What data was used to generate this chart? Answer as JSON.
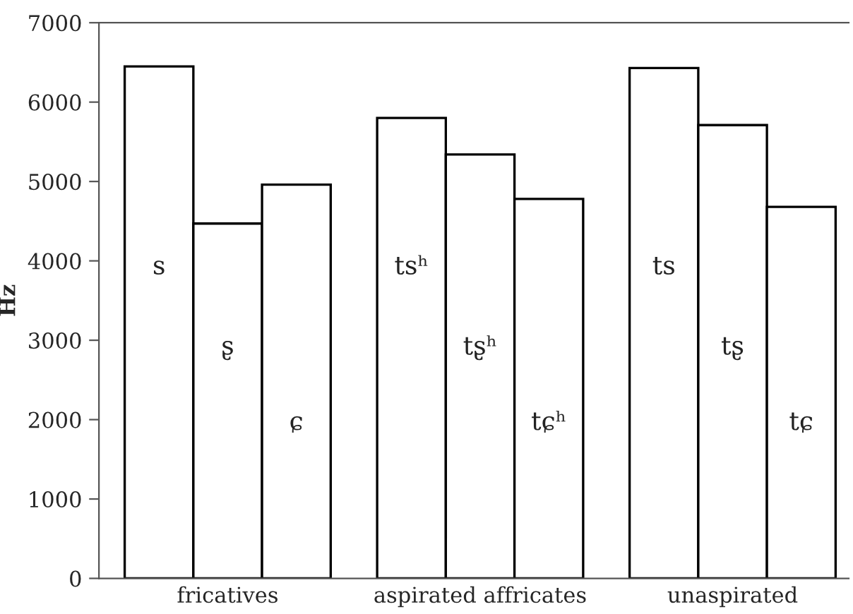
{
  "chart_data": {
    "type": "bar",
    "ylabel": "Hz",
    "categories": [
      "fricatives",
      "aspirated affricates",
      "unaspirated"
    ],
    "series": [
      {
        "color": "#ffffff",
        "values": [
          6450,
          5800,
          6430
        ],
        "value_labels": [
          "s",
          "tsʰ",
          "ts"
        ]
      },
      {
        "color": "#ffffff",
        "values": [
          4470,
          5340,
          5710
        ],
        "value_labels": [
          "ʂ",
          "tʂʰ",
          "tʂ"
        ]
      },
      {
        "color": "#ffffff",
        "values": [
          4960,
          4780,
          4680
        ],
        "value_labels": [
          "ɕ",
          "tɕʰ",
          "tɕ"
        ]
      }
    ],
    "ylim": [
      0,
      7000
    ],
    "yticks": [
      0,
      1000,
      2000,
      3000,
      4000,
      5000,
      6000,
      7000
    ]
  }
}
